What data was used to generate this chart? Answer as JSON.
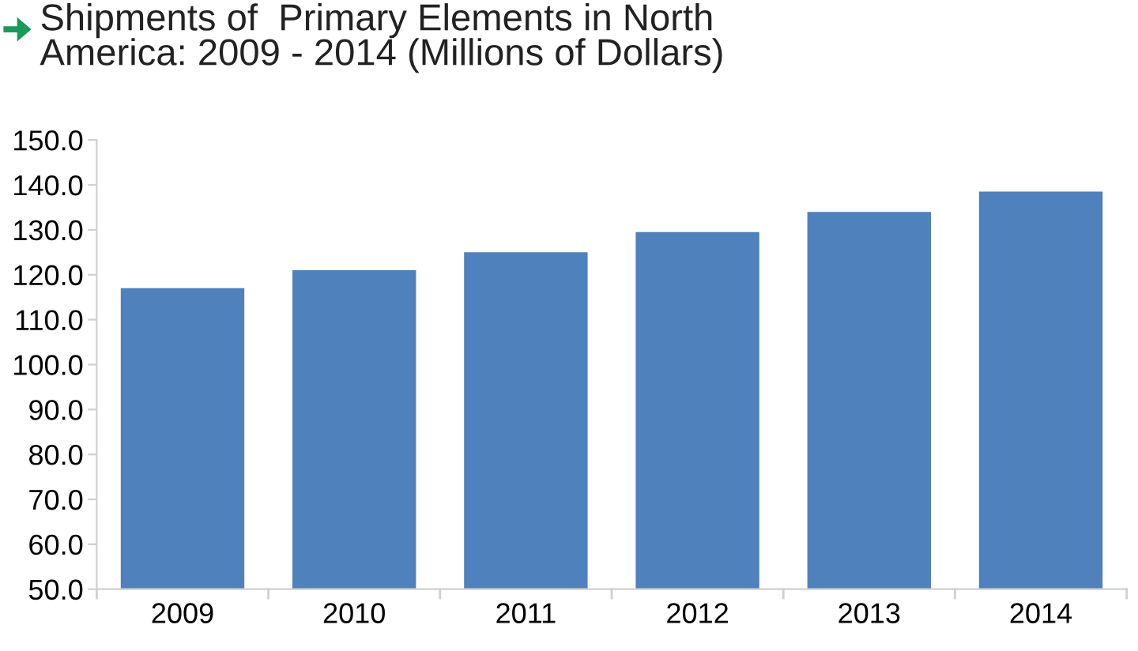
{
  "chart_data": {
    "type": "bar",
    "title": "Shipments of  Primary Elements in North\nAmerica: 2009 - 2014 (Millions of Dollars)",
    "categories": [
      "2009",
      "2010",
      "2011",
      "2012",
      "2013",
      "2014"
    ],
    "values": [
      117,
      121,
      125,
      129.5,
      134,
      138.5
    ],
    "color": "#4f81bd",
    "ylim": [
      50,
      150
    ],
    "yticks": [
      {
        "value": 50,
        "label": "50.0"
      },
      {
        "value": 60,
        "label": "60.0"
      },
      {
        "value": 70,
        "label": "70.0"
      },
      {
        "value": 80,
        "label": "80.0"
      },
      {
        "value": 90,
        "label": "90.0"
      },
      {
        "value": 100,
        "label": "100.0"
      },
      {
        "value": 110,
        "label": "110.0"
      },
      {
        "value": 120,
        "label": "120.0"
      },
      {
        "value": 130,
        "label": "130.0"
      },
      {
        "value": 140,
        "label": "140.0"
      },
      {
        "value": 150,
        "label": "150.0"
      }
    ],
    "grid": false
  }
}
